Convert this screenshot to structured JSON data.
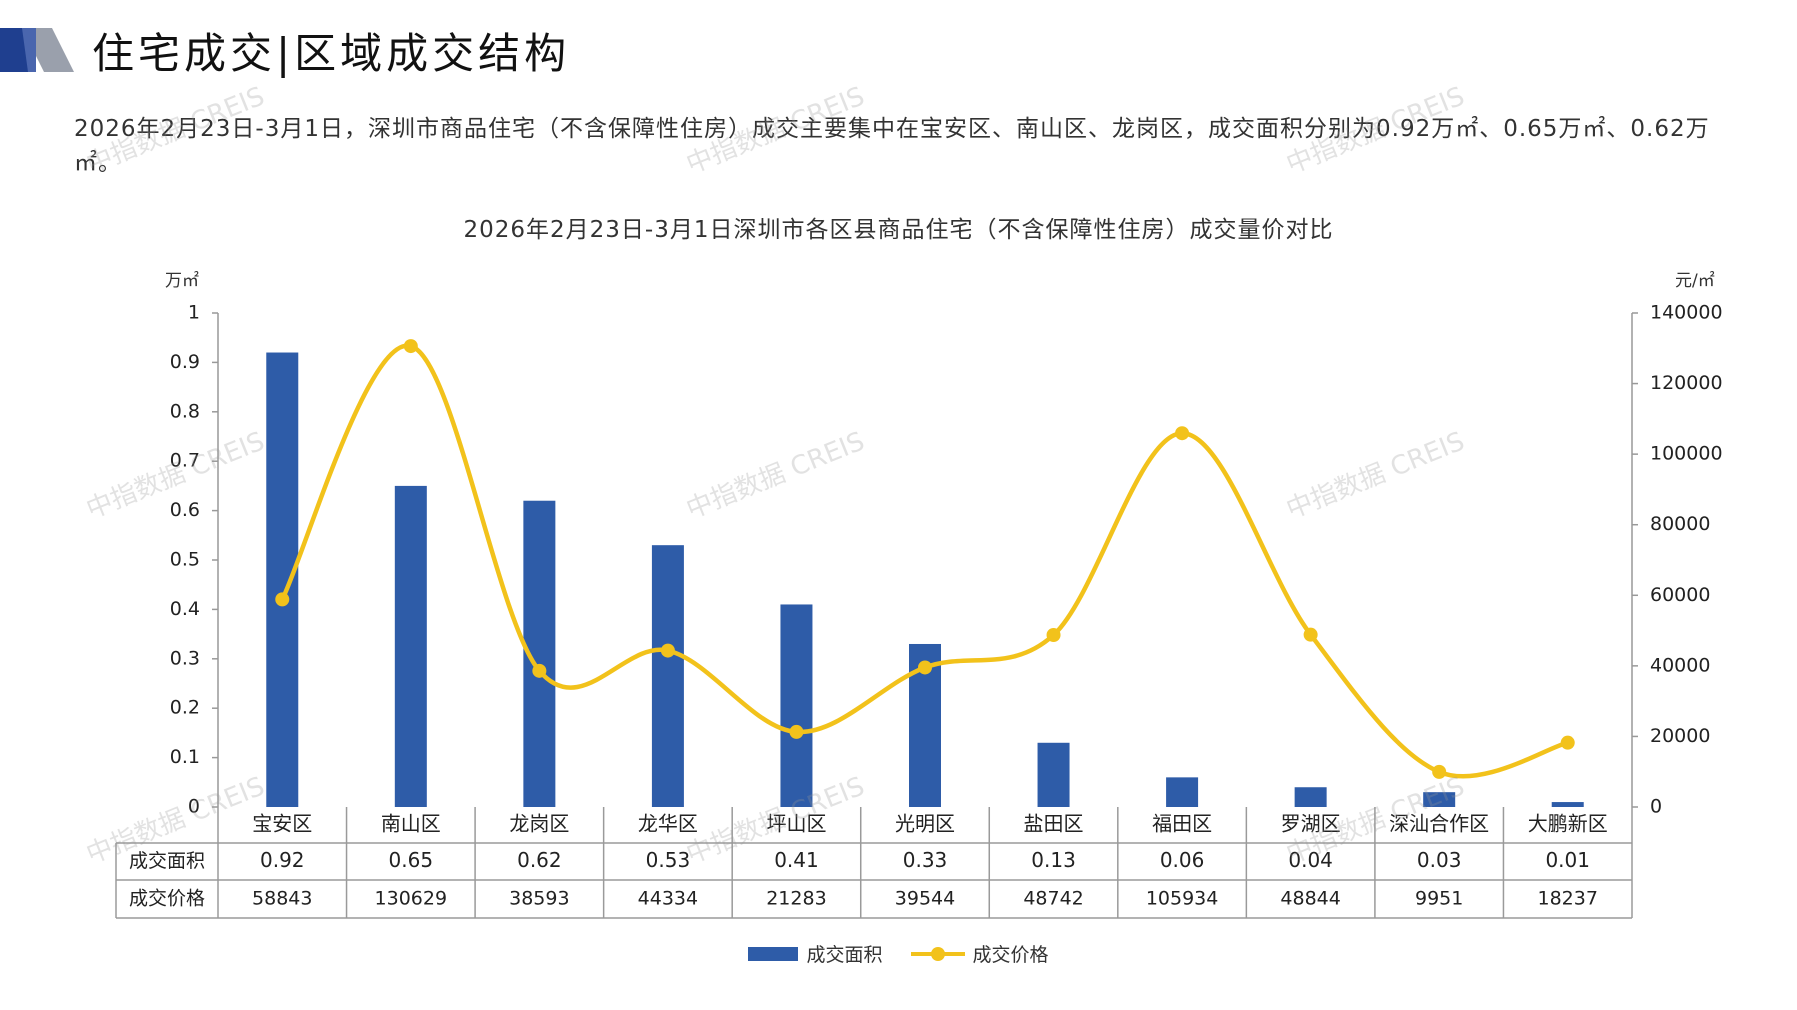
{
  "header": {
    "title": "住宅成交|区域成交结构",
    "summary": "2026年2月23日-3月1日，深圳市商品住宅（不含保障性住房）成交主要集中在宝安区、南山区、龙岗区，成交面积分别为0.92万㎡、0.65万㎡、0.62万㎡。"
  },
  "watermark_text": "中指数据 CREIS",
  "colors": {
    "bar": "#2E5CA8",
    "line": "#F2C21B",
    "accent_dark": "#1F3F8F"
  },
  "chart_data": {
    "type": "bar",
    "title": "2026年2月23日-3月1日深圳市各区县商品住宅（不含保障性住房）成交量价对比",
    "ylabel": "万㎡",
    "y2label": "元/㎡",
    "ylim": [
      0,
      1
    ],
    "y2lim": [
      0,
      140000
    ],
    "yticks": [
      "1",
      "0.9",
      "0.8",
      "0.7",
      "0.6",
      "0.5",
      "0.4",
      "0.3",
      "0.2",
      "0.1",
      "0"
    ],
    "y2ticks": [
      "140000",
      "120000",
      "100000",
      "80000",
      "60000",
      "40000",
      "20000",
      "0"
    ],
    "categories": [
      "宝安区",
      "南山区",
      "龙岗区",
      "龙华区",
      "坪山区",
      "光明区",
      "盐田区",
      "福田区",
      "罗湖区",
      "深汕合作区",
      "大鹏新区"
    ],
    "series": [
      {
        "name": "成交面积",
        "type": "bar",
        "axis": "left",
        "values": [
          0.92,
          0.65,
          0.62,
          0.53,
          0.41,
          0.33,
          0.13,
          0.06,
          0.04,
          0.03,
          0.01
        ],
        "labels": [
          "0.92",
          "0.65",
          "0.62",
          "0.53",
          "0.41",
          "0.33",
          "0.13",
          "0.06",
          "0.04",
          "0.03",
          "0.01"
        ]
      },
      {
        "name": "成交价格",
        "type": "line",
        "axis": "right",
        "values": [
          58843,
          130629,
          38593,
          44334,
          21283,
          39544,
          48742,
          105934,
          48844,
          9951,
          18237
        ],
        "labels": [
          "58843",
          "130629",
          "38593",
          "44334",
          "21283",
          "39544",
          "48742",
          "105934",
          "48844",
          "9951",
          "18237"
        ]
      }
    ],
    "grid": false,
    "legend": "bottom"
  }
}
